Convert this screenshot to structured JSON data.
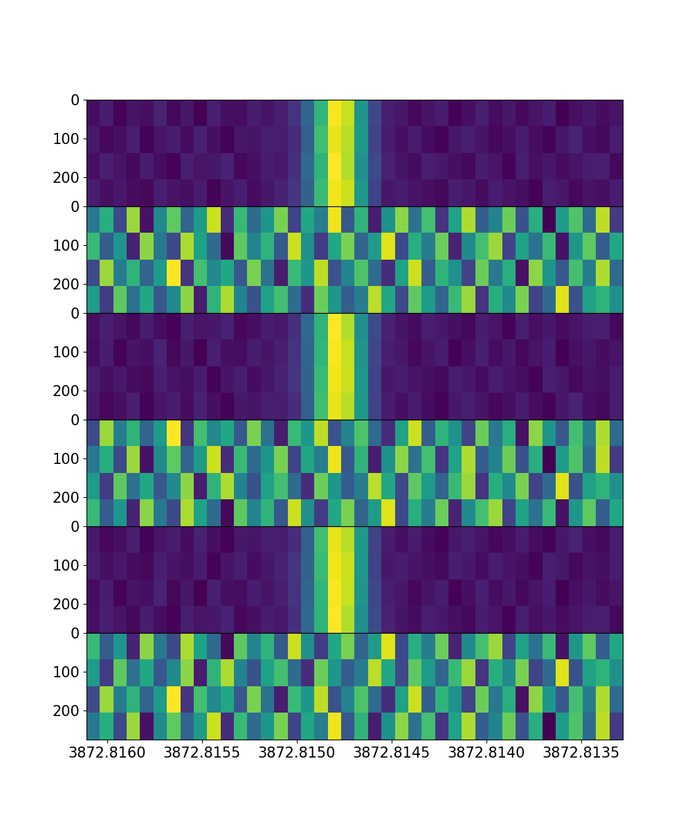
{
  "chart_data": [
    {
      "type": "heatmap",
      "tick_labels": "y",
      "xlim": [
        3872.81611,
        3872.81328
      ],
      "xticks": [
        {
          "value": 3872.816,
          "label": "3872.8160"
        },
        {
          "value": 3872.8155,
          "label": "3872.8155"
        },
        {
          "value": 3872.815,
          "label": "3872.8150"
        },
        {
          "value": 3872.8145,
          "label": "3872.8145"
        },
        {
          "value": 3872.814,
          "label": "3872.8140"
        },
        {
          "value": 3872.8135,
          "label": "3872.8135"
        }
      ],
      "ylim": [
        275,
        0
      ],
      "yticks": [
        0,
        100,
        200
      ],
      "cells": [
        [
          8,
          12,
          6,
          10,
          9,
          14,
          7,
          11,
          5,
          13,
          9,
          8,
          12,
          10,
          13,
          19,
          36,
          67,
          98,
          91,
          54,
          25,
          13,
          11,
          7,
          10,
          12,
          6,
          9,
          13,
          8,
          11,
          7,
          10,
          12,
          5,
          9,
          11,
          8,
          10
        ],
        [
          11,
          7,
          9,
          13,
          6,
          10,
          12,
          8,
          14,
          9,
          6,
          11,
          10,
          13,
          12,
          17,
          34,
          70,
          96,
          89,
          56,
          23,
          12,
          9,
          12,
          8,
          6,
          11,
          13,
          10,
          7,
          9,
          12,
          8,
          6,
          11,
          14,
          9,
          7,
          12
        ],
        [
          9,
          13,
          10,
          7,
          12,
          8,
          6,
          13,
          10,
          11,
          14,
          7,
          9,
          12,
          11,
          18,
          37,
          66,
          99,
          88,
          52,
          26,
          14,
          10,
          8,
          13,
          11,
          9,
          7,
          12,
          10,
          6,
          13,
          9,
          11,
          8,
          10,
          12,
          13,
          7
        ],
        [
          12,
          9,
          11,
          8,
          7,
          13,
          10,
          9,
          12,
          6,
          10,
          13,
          8,
          11,
          14,
          20,
          35,
          69,
          97,
          92,
          55,
          24,
          11,
          12,
          10,
          9,
          7,
          13,
          11,
          8,
          12,
          10,
          9,
          6,
          13,
          11,
          7,
          10,
          9,
          12
        ]
      ]
    },
    {
      "type": "heatmap",
      "tick_labels": "y",
      "xlim": [
        3872.81611,
        3872.81328
      ],
      "xticks": [
        {
          "value": 3872.816,
          "label": "3872.8160"
        },
        {
          "value": 3872.8155,
          "label": "3872.8155"
        },
        {
          "value": 3872.815,
          "label": "3872.8150"
        },
        {
          "value": 3872.8145,
          "label": "3872.8145"
        },
        {
          "value": 3872.814,
          "label": "3872.8140"
        },
        {
          "value": 3872.8135,
          "label": "3872.8135"
        }
      ],
      "ylim": [
        275,
        0
      ],
      "yticks": [
        0,
        100,
        200
      ],
      "cells": [
        [
          52,
          61,
          45,
          70,
          38,
          55,
          66,
          49,
          58,
          73,
          41,
          63,
          50,
          57,
          68,
          44,
          60,
          53,
          75,
          47,
          62,
          39,
          56,
          69,
          51,
          64,
          42,
          59,
          71,
          48,
          54,
          67,
          46,
          61,
          36,
          58,
          65,
          50,
          72,
          43
        ],
        [
          63,
          48,
          57,
          40,
          69,
          52,
          45,
          71,
          59,
          50,
          37,
          66,
          54,
          62,
          47,
          73,
          56,
          43,
          60,
          68,
          49,
          58,
          74,
          45,
          61,
          53,
          67,
          40,
          55,
          64,
          70,
          44,
          59,
          51,
          63,
          38,
          57,
          66,
          48,
          60
        ],
        [
          45,
          70,
          53,
          62,
          49,
          58,
          76,
          42,
          64,
          55,
          60,
          47,
          68,
          51,
          39,
          63,
          57,
          72,
          46,
          54,
          65,
          50,
          41,
          59,
          73,
          48,
          62,
          56,
          44,
          67,
          52,
          61,
          38,
          69,
          57,
          47,
          64,
          53,
          71,
          50
        ],
        [
          58,
          43,
          66,
          51,
          60,
          47,
          55,
          69,
          39,
          62,
          71,
          54,
          46,
          59,
          64,
          50,
          41,
          67,
          57,
          48,
          53,
          72,
          60,
          45,
          66,
          58,
          49,
          63,
          70,
          42,
          61,
          55,
          68,
          44,
          50,
          74,
          46,
          59,
          62,
          56
        ]
      ]
    },
    {
      "type": "heatmap",
      "tick_labels": "y",
      "xlim": [
        3872.81611,
        3872.81328
      ],
      "xticks": [
        {
          "value": 3872.816,
          "label": "3872.8160"
        },
        {
          "value": 3872.8155,
          "label": "3872.8155"
        },
        {
          "value": 3872.815,
          "label": "3872.8150"
        },
        {
          "value": 3872.8145,
          "label": "3872.8145"
        },
        {
          "value": 3872.814,
          "label": "3872.8140"
        },
        {
          "value": 3872.8135,
          "label": "3872.8135"
        }
      ],
      "ylim": [
        275,
        0
      ],
      "yticks": [
        0,
        100,
        200
      ],
      "cells": [
        [
          9,
          13,
          10,
          7,
          12,
          8,
          6,
          13,
          10,
          11,
          14,
          7,
          9,
          12,
          11,
          18,
          37,
          66,
          99,
          88,
          52,
          26,
          14,
          10,
          8,
          13,
          11,
          9,
          7,
          12,
          10,
          6,
          13,
          9,
          11,
          8,
          10,
          12,
          13,
          7
        ],
        [
          8,
          12,
          6,
          10,
          9,
          14,
          7,
          11,
          5,
          13,
          9,
          8,
          12,
          10,
          13,
          19,
          36,
          67,
          98,
          91,
          54,
          25,
          13,
          11,
          7,
          10,
          12,
          6,
          9,
          13,
          8,
          11,
          7,
          10,
          12,
          5,
          9,
          11,
          8,
          10
        ],
        [
          12,
          9,
          11,
          8,
          7,
          13,
          10,
          9,
          12,
          6,
          10,
          13,
          8,
          11,
          14,
          20,
          35,
          69,
          97,
          92,
          55,
          24,
          11,
          12,
          10,
          9,
          7,
          13,
          11,
          8,
          12,
          10,
          9,
          6,
          13,
          11,
          7,
          10,
          9,
          12
        ],
        [
          11,
          7,
          9,
          13,
          6,
          10,
          12,
          8,
          14,
          9,
          6,
          11,
          10,
          13,
          12,
          17,
          34,
          70,
          96,
          89,
          56,
          23,
          12,
          9,
          12,
          8,
          6,
          11,
          13,
          10,
          7,
          9,
          12,
          8,
          6,
          11,
          14,
          9,
          7,
          12
        ]
      ]
    },
    {
      "type": "heatmap",
      "tick_labels": "y",
      "xlim": [
        3872.81611,
        3872.81328
      ],
      "xticks": [
        {
          "value": 3872.816,
          "label": "3872.8160"
        },
        {
          "value": 3872.8155,
          "label": "3872.8155"
        },
        {
          "value": 3872.815,
          "label": "3872.8150"
        },
        {
          "value": 3872.8145,
          "label": "3872.8145"
        },
        {
          "value": 3872.814,
          "label": "3872.8140"
        },
        {
          "value": 3872.8135,
          "label": "3872.8135"
        }
      ],
      "ylim": [
        275,
        0
      ],
      "yticks": [
        0,
        100,
        200
      ],
      "cells": [
        [
          45,
          70,
          53,
          62,
          49,
          58,
          76,
          42,
          64,
          55,
          60,
          47,
          68,
          51,
          39,
          63,
          57,
          72,
          46,
          54,
          65,
          50,
          41,
          59,
          73,
          48,
          62,
          56,
          44,
          67,
          52,
          61,
          38,
          69,
          57,
          47,
          64,
          53,
          71,
          50
        ],
        [
          52,
          61,
          45,
          70,
          38,
          55,
          66,
          49,
          58,
          73,
          41,
          63,
          50,
          57,
          68,
          44,
          60,
          53,
          75,
          47,
          62,
          39,
          56,
          69,
          51,
          64,
          42,
          59,
          71,
          48,
          54,
          67,
          46,
          61,
          36,
          58,
          65,
          50,
          72,
          43
        ],
        [
          58,
          43,
          66,
          51,
          60,
          47,
          55,
          69,
          39,
          62,
          71,
          54,
          46,
          59,
          64,
          50,
          41,
          67,
          57,
          48,
          53,
          72,
          60,
          45,
          66,
          58,
          49,
          63,
          70,
          42,
          61,
          55,
          68,
          44,
          50,
          74,
          46,
          59,
          62,
          56
        ],
        [
          63,
          48,
          57,
          40,
          69,
          52,
          45,
          71,
          59,
          50,
          37,
          66,
          54,
          62,
          47,
          73,
          56,
          43,
          60,
          68,
          49,
          58,
          74,
          45,
          61,
          53,
          67,
          40,
          55,
          64,
          70,
          44,
          59,
          51,
          63,
          38,
          57,
          66,
          48,
          60
        ]
      ]
    },
    {
      "type": "heatmap",
      "tick_labels": "y",
      "xlim": [
        3872.81611,
        3872.81328
      ],
      "xticks": [
        {
          "value": 3872.816,
          "label": "3872.8160"
        },
        {
          "value": 3872.8155,
          "label": "3872.8155"
        },
        {
          "value": 3872.815,
          "label": "3872.8150"
        },
        {
          "value": 3872.8145,
          "label": "3872.8145"
        },
        {
          "value": 3872.814,
          "label": "3872.8140"
        },
        {
          "value": 3872.8135,
          "label": "3872.8135"
        }
      ],
      "ylim": [
        275,
        0
      ],
      "yticks": [
        0,
        100,
        200
      ],
      "cells": [
        [
          11,
          7,
          9,
          13,
          6,
          10,
          12,
          8,
          14,
          9,
          6,
          11,
          10,
          13,
          12,
          17,
          34,
          70,
          96,
          89,
          56,
          23,
          12,
          9,
          12,
          8,
          6,
          11,
          13,
          10,
          7,
          9,
          12,
          8,
          6,
          11,
          14,
          9,
          7,
          12
        ],
        [
          12,
          9,
          11,
          8,
          7,
          13,
          10,
          9,
          12,
          6,
          10,
          13,
          8,
          11,
          14,
          20,
          35,
          69,
          97,
          92,
          55,
          24,
          11,
          12,
          10,
          9,
          7,
          13,
          11,
          8,
          12,
          10,
          9,
          6,
          13,
          11,
          7,
          10,
          9,
          12
        ],
        [
          8,
          12,
          6,
          10,
          9,
          14,
          7,
          11,
          5,
          13,
          9,
          8,
          12,
          10,
          13,
          19,
          36,
          67,
          98,
          91,
          54,
          25,
          13,
          11,
          7,
          10,
          12,
          6,
          9,
          13,
          8,
          11,
          7,
          10,
          12,
          5,
          9,
          11,
          8,
          10
        ],
        [
          9,
          13,
          10,
          7,
          12,
          8,
          6,
          13,
          10,
          11,
          14,
          7,
          9,
          12,
          11,
          18,
          37,
          66,
          99,
          88,
          52,
          26,
          14,
          10,
          8,
          13,
          11,
          9,
          7,
          12,
          10,
          6,
          13,
          9,
          11,
          8,
          10,
          12,
          13,
          7
        ]
      ]
    },
    {
      "type": "heatmap",
      "xlim": [
        3872.81611,
        3872.81328
      ],
      "xticks": [
        {
          "value": 3872.816,
          "label": "3872.8160"
        },
        {
          "value": 3872.8155,
          "label": "3872.8155"
        },
        {
          "value": 3872.815,
          "label": "3872.8150"
        },
        {
          "value": 3872.8145,
          "label": "3872.8145"
        },
        {
          "value": 3872.814,
          "label": "3872.8140"
        },
        {
          "value": 3872.8135,
          "label": "3872.8135"
        }
      ],
      "ylim": [
        275,
        0
      ],
      "yticks": [
        0,
        100,
        200
      ],
      "cells": [
        [
          63,
          48,
          57,
          40,
          69,
          52,
          45,
          71,
          59,
          50,
          37,
          66,
          54,
          62,
          47,
          73,
          56,
          43,
          60,
          68,
          49,
          58,
          74,
          45,
          61,
          53,
          67,
          40,
          55,
          64,
          70,
          44,
          59,
          51,
          63,
          38,
          57,
          66,
          48,
          60
        ],
        [
          58,
          43,
          66,
          51,
          60,
          47,
          55,
          69,
          39,
          62,
          71,
          54,
          46,
          59,
          64,
          50,
          41,
          67,
          57,
          48,
          53,
          72,
          60,
          45,
          66,
          58,
          49,
          63,
          70,
          42,
          61,
          55,
          68,
          44,
          50,
          74,
          46,
          59,
          62,
          56
        ],
        [
          45,
          70,
          53,
          62,
          49,
          58,
          76,
          42,
          64,
          55,
          60,
          47,
          68,
          51,
          39,
          63,
          57,
          72,
          46,
          54,
          65,
          50,
          41,
          59,
          73,
          48,
          62,
          56,
          44,
          67,
          52,
          61,
          38,
          69,
          57,
          47,
          64,
          53,
          71,
          50
        ],
        [
          52,
          61,
          45,
          70,
          38,
          55,
          66,
          49,
          58,
          73,
          41,
          63,
          50,
          57,
          68,
          44,
          60,
          53,
          75,
          47,
          62,
          39,
          56,
          69,
          51,
          64,
          42,
          59,
          71,
          48,
          54,
          67,
          46,
          61,
          36,
          58,
          65,
          50,
          72,
          43
        ]
      ]
    }
  ]
}
